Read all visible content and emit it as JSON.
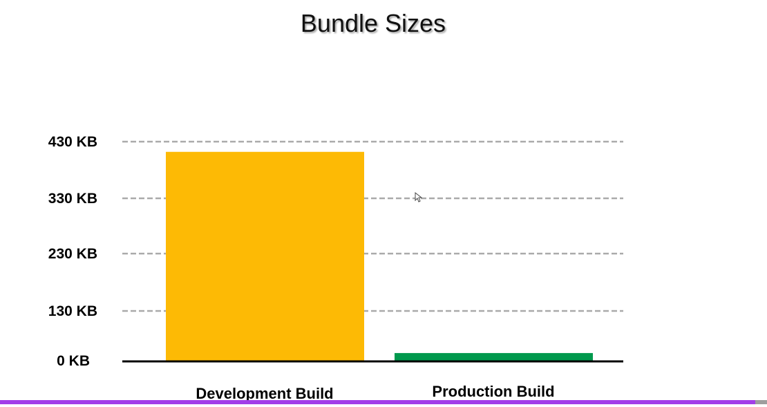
{
  "chart_data": {
    "type": "bar",
    "title": "Bundle Sizes",
    "categories": [
      "Development Build",
      "Production Build"
    ],
    "values": [
      412,
      20
    ],
    "unit": "KB",
    "yticks": [
      0,
      130,
      230,
      330,
      430
    ],
    "ytick_labels": [
      "0 KB",
      "130 KB",
      "230 KB",
      "330 KB",
      "430 KB"
    ],
    "ylim": [
      0,
      430
    ],
    "grid": true,
    "colors": [
      "#FDBA05",
      "#00994D"
    ]
  },
  "video_progress": {
    "fraction": 0.985,
    "fill_color": "#A23EE8",
    "track_color": "#9E9E9E"
  },
  "cursor": {
    "icon": "mouse-pointer-icon"
  }
}
